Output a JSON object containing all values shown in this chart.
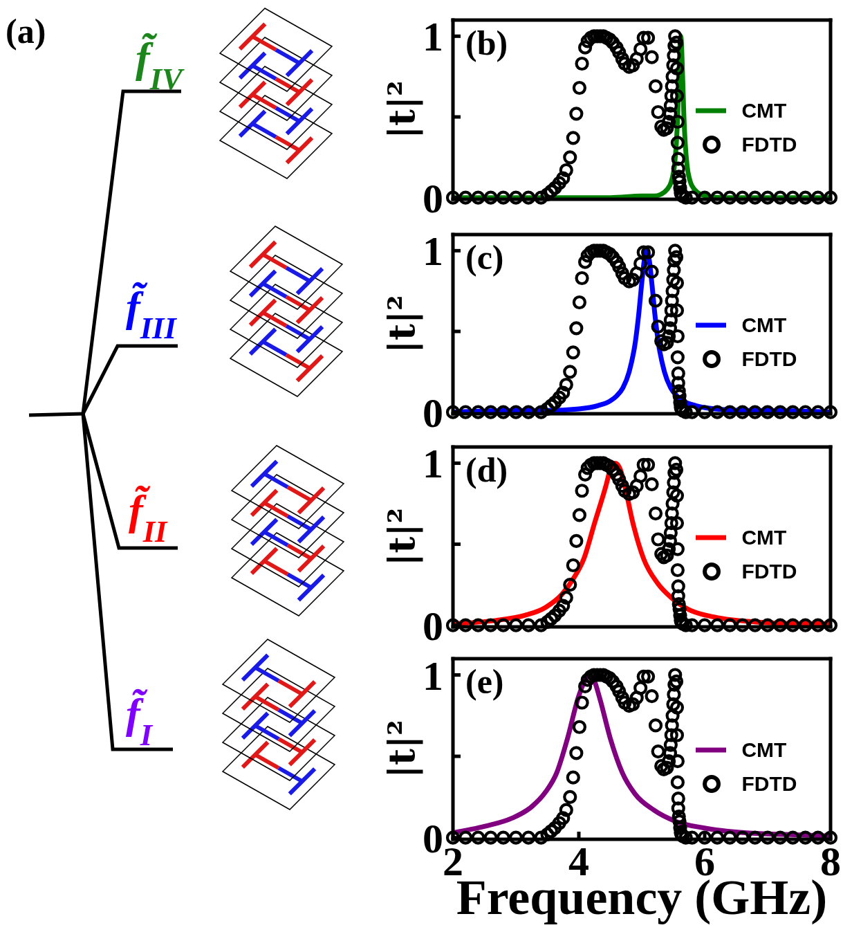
{
  "chart_data": [
    {
      "type": "other",
      "annotations": [
        "(a)"
      ],
      "categories": [
        "f̃$_{IV}$",
        "f̃$_{III}$",
        "f̃$_{II}$",
        "f̃$_{I}$"
      ],
      "colors": [
        "#1c861c",
        "#0000ff",
        "#ff0000",
        "#8000ff"
      ]
    },
    {
      "type": "line",
      "annotations": [
        "(b)"
      ],
      "ylabel": "|t|²",
      "xlim": [
        2,
        8
      ],
      "xticks": [
        2,
        4,
        6,
        8
      ],
      "ylim": [
        -0.01,
        1.1
      ],
      "yticks": [
        {
          "value": 0,
          "label": "0"
        },
        {
          "value": 0.5,
          "label": null
        },
        {
          "value": 1,
          "label": "1"
        }
      ],
      "tick_labels": "y",
      "legend": "right",
      "series": [
        {
          "name": "CMT",
          "color": "#008000",
          "x": [
            2,
            3,
            4,
            4.5,
            5,
            5.2,
            5.3,
            5.4,
            5.47,
            5.52,
            5.55,
            5.57,
            5.59,
            5.61,
            5.62,
            5.63,
            5.65,
            5.67,
            5.69,
            5.72,
            5.77,
            5.84,
            5.94,
            6.04,
            6.3,
            7,
            8
          ],
          "values": [
            0,
            0,
            0,
            0,
            0.01,
            0.01,
            0.02,
            0.05,
            0.1,
            0.2,
            0.34,
            0.5,
            0.74,
            0.96,
            1,
            0.96,
            0.74,
            0.5,
            0.34,
            0.2,
            0.1,
            0.05,
            0.02,
            0.01,
            0,
            0,
            0
          ]
        },
        {
          "name": "FDTD",
          "type": "scatter",
          "marker": "circle",
          "color": "#000000",
          "x": [
            2,
            2.2,
            2.4,
            2.6,
            2.8,
            3,
            3.2,
            3.4,
            3.5,
            3.56,
            3.62,
            3.69,
            3.75,
            3.8,
            3.86,
            3.91,
            3.96,
            4.01,
            4.05,
            4.1,
            4.14,
            4.19,
            4.24,
            4.29,
            4.34,
            4.39,
            4.44,
            4.49,
            4.54,
            4.6,
            4.64,
            4.69,
            4.73,
            4.8,
            4.86,
            4.92,
            4.98,
            5.03,
            5.1,
            5.16,
            5.22,
            5.26,
            5.31,
            5.35,
            5.4,
            5.43,
            5.45,
            5.46,
            5.47,
            5.48,
            5.49,
            5.5,
            5.51,
            5.52,
            5.53,
            5.55,
            5.56,
            5.56,
            5.57,
            5.57,
            5.58,
            5.58,
            5.59,
            5.6,
            5.61,
            5.62,
            5.63,
            5.65,
            5.7,
            5.8,
            6,
            6.2,
            6.4,
            6.6,
            6.8,
            7,
            7.2,
            7.4,
            7.6,
            7.8,
            8
          ],
          "values": [
            0,
            0,
            0,
            0,
            0,
            0,
            0,
            0,
            0.02,
            0.04,
            0.06,
            0.09,
            0.12,
            0.17,
            0.25,
            0.37,
            0.52,
            0.68,
            0.83,
            0.93,
            0.97,
            0.99,
            1,
            1,
            1,
            1,
            0.99,
            0.98,
            0.96,
            0.93,
            0.9,
            0.86,
            0.83,
            0.81,
            0.82,
            0.86,
            0.92,
            0.99,
            0.99,
            0.87,
            0.69,
            0.53,
            0.44,
            0.42,
            0.43,
            0.47,
            0.52,
            0.57,
            0.63,
            0.69,
            0.75,
            0.82,
            0.88,
            0.94,
            1,
            0.96,
            0.8,
            0.63,
            0.47,
            0.34,
            0.24,
            0.18,
            0.13,
            0.1,
            0.06,
            0.03,
            0.02,
            0.01,
            0,
            0,
            0,
            0,
            0,
            0,
            0,
            0,
            0,
            0,
            0,
            0,
            0
          ]
        }
      ]
    },
    {
      "type": "line",
      "annotations": [
        "(c)"
      ],
      "ylabel": "|t|²",
      "xlim": [
        2,
        8
      ],
      "xticks": [
        2,
        4,
        6,
        8
      ],
      "ylim": [
        -0.01,
        1.1
      ],
      "yticks": [
        {
          "value": 0,
          "label": "0"
        },
        {
          "value": 0.5,
          "label": null
        },
        {
          "value": 1,
          "label": "1"
        }
      ],
      "tick_labels": "y",
      "legend": "right",
      "series": [
        {
          "name": "CMT",
          "color": "#0000ff",
          "x": [
            2,
            3,
            3.5,
            4,
            4.3,
            4.5,
            4.6,
            4.7,
            4.8,
            4.9,
            4.95,
            5,
            5.04,
            5.08,
            5.12,
            5.16,
            5.21,
            5.26,
            5.36,
            5.46,
            5.56,
            5.66,
            5.86,
            6.16,
            6.66,
            7,
            8
          ],
          "values": [
            0,
            0.01,
            0.01,
            0.02,
            0.04,
            0.07,
            0.1,
            0.15,
            0.25,
            0.44,
            0.6,
            0.8,
            0.94,
            1,
            0.94,
            0.8,
            0.6,
            0.44,
            0.25,
            0.15,
            0.1,
            0.07,
            0.04,
            0.02,
            0.01,
            0.01,
            0
          ]
        },
        {
          "name": "FDTD",
          "type": "scatter",
          "marker": "circle",
          "color": "#000000",
          "x": [
            2,
            2.2,
            2.4,
            2.6,
            2.8,
            3,
            3.2,
            3.4,
            3.5,
            3.56,
            3.62,
            3.69,
            3.75,
            3.8,
            3.86,
            3.91,
            3.96,
            4.01,
            4.05,
            4.1,
            4.14,
            4.19,
            4.24,
            4.29,
            4.34,
            4.39,
            4.44,
            4.49,
            4.54,
            4.6,
            4.64,
            4.69,
            4.73,
            4.8,
            4.86,
            4.92,
            4.98,
            5.03,
            5.1,
            5.16,
            5.22,
            5.26,
            5.31,
            5.35,
            5.4,
            5.43,
            5.45,
            5.46,
            5.47,
            5.48,
            5.49,
            5.5,
            5.51,
            5.52,
            5.53,
            5.55,
            5.56,
            5.56,
            5.57,
            5.57,
            5.58,
            5.58,
            5.59,
            5.6,
            5.61,
            5.62,
            5.63,
            5.65,
            5.7,
            5.8,
            6,
            6.2,
            6.4,
            6.6,
            6.8,
            7,
            7.2,
            7.4,
            7.6,
            7.8,
            8
          ],
          "values": [
            0,
            0,
            0,
            0,
            0,
            0,
            0,
            0,
            0.02,
            0.04,
            0.06,
            0.09,
            0.12,
            0.17,
            0.25,
            0.37,
            0.52,
            0.68,
            0.83,
            0.93,
            0.97,
            0.99,
            1,
            1,
            1,
            1,
            0.99,
            0.98,
            0.96,
            0.93,
            0.9,
            0.86,
            0.83,
            0.81,
            0.82,
            0.86,
            0.92,
            0.99,
            0.99,
            0.87,
            0.69,
            0.53,
            0.44,
            0.42,
            0.43,
            0.47,
            0.52,
            0.57,
            0.63,
            0.69,
            0.75,
            0.82,
            0.88,
            0.94,
            1,
            0.96,
            0.8,
            0.63,
            0.47,
            0.34,
            0.24,
            0.18,
            0.13,
            0.1,
            0.06,
            0.03,
            0.02,
            0.01,
            0,
            0,
            0,
            0,
            0,
            0,
            0,
            0,
            0,
            0,
            0,
            0,
            0
          ]
        }
      ]
    },
    {
      "type": "line",
      "annotations": [
        "(d)"
      ],
      "ylabel": "|t|²",
      "xlim": [
        2,
        8
      ],
      "xticks": [
        2,
        4,
        6,
        8
      ],
      "ylim": [
        -0.01,
        1.1
      ],
      "yticks": [
        {
          "value": 0,
          "label": "0"
        },
        {
          "value": 0.5,
          "label": null
        },
        {
          "value": 1,
          "label": "1"
        }
      ],
      "tick_labels": "y",
      "legend": "right",
      "series": [
        {
          "name": "CMT",
          "color": "#ff0000",
          "x": [
            2,
            2.69,
            3.13,
            3.47,
            3.73,
            3.9,
            4.08,
            4.25,
            4.43,
            4.5,
            4.58,
            4.66,
            4.73,
            4.86,
            5.03,
            5.25,
            5.47,
            5.73,
            6.16,
            6.81,
            7.46,
            8
          ],
          "values": [
            0.01,
            0.03,
            0.06,
            0.11,
            0.19,
            0.28,
            0.41,
            0.63,
            0.86,
            0.96,
            1,
            0.96,
            0.86,
            0.63,
            0.41,
            0.26,
            0.17,
            0.1,
            0.05,
            0.02,
            0.01,
            0.01
          ]
        },
        {
          "name": "FDTD",
          "type": "scatter",
          "marker": "circle",
          "color": "#000000",
          "x": [
            2,
            2.2,
            2.4,
            2.6,
            2.8,
            3,
            3.2,
            3.4,
            3.5,
            3.56,
            3.62,
            3.69,
            3.75,
            3.8,
            3.86,
            3.91,
            3.96,
            4.01,
            4.05,
            4.1,
            4.14,
            4.19,
            4.24,
            4.29,
            4.34,
            4.39,
            4.44,
            4.49,
            4.54,
            4.6,
            4.64,
            4.69,
            4.73,
            4.8,
            4.86,
            4.92,
            4.98,
            5.03,
            5.1,
            5.16,
            5.22,
            5.26,
            5.31,
            5.35,
            5.4,
            5.43,
            5.45,
            5.46,
            5.47,
            5.48,
            5.49,
            5.5,
            5.51,
            5.52,
            5.53,
            5.55,
            5.56,
            5.56,
            5.57,
            5.57,
            5.58,
            5.58,
            5.59,
            5.6,
            5.61,
            5.62,
            5.63,
            5.65,
            5.7,
            5.8,
            6,
            6.2,
            6.4,
            6.6,
            6.8,
            7,
            7.2,
            7.4,
            7.6,
            7.8,
            8
          ],
          "values": [
            0,
            0,
            0,
            0,
            0,
            0,
            0,
            0,
            0.02,
            0.04,
            0.06,
            0.09,
            0.12,
            0.17,
            0.25,
            0.37,
            0.52,
            0.68,
            0.83,
            0.93,
            0.97,
            0.99,
            1,
            1,
            1,
            1,
            0.99,
            0.98,
            0.96,
            0.93,
            0.9,
            0.86,
            0.83,
            0.81,
            0.82,
            0.86,
            0.92,
            0.99,
            0.99,
            0.87,
            0.69,
            0.53,
            0.44,
            0.42,
            0.43,
            0.47,
            0.52,
            0.57,
            0.63,
            0.69,
            0.75,
            0.82,
            0.88,
            0.94,
            1,
            0.96,
            0.8,
            0.63,
            0.47,
            0.34,
            0.24,
            0.18,
            0.13,
            0.1,
            0.06,
            0.03,
            0.02,
            0.01,
            0,
            0,
            0,
            0,
            0,
            0,
            0,
            0,
            0,
            0,
            0,
            0,
            0
          ]
        }
      ]
    },
    {
      "type": "line",
      "annotations": [
        "(e)"
      ],
      "xlabel": "Frequency (GHz)",
      "ylabel": "|t|²",
      "xlim": [
        2,
        8
      ],
      "xticks": [
        2,
        4,
        6,
        8
      ],
      "ylim": [
        -0.01,
        1.1
      ],
      "yticks": [
        {
          "value": 0,
          "label": "0"
        },
        {
          "value": 0.5,
          "label": null
        },
        {
          "value": 1,
          "label": "1"
        }
      ],
      "legend": "right",
      "series": [
        {
          "name": "CMT",
          "color": "#800080",
          "x": [
            2,
            2.51,
            2.94,
            3.25,
            3.47,
            3.65,
            3.82,
            3.99,
            4.09,
            4.17,
            4.25,
            4.33,
            4.5,
            4.69,
            4.89,
            5.19,
            5.54,
            5.98,
            6.63,
            7.28,
            8
          ],
          "values": [
            0.03,
            0.07,
            0.12,
            0.19,
            0.28,
            0.4,
            0.61,
            0.86,
            0.96,
            1,
            0.96,
            0.86,
            0.61,
            0.4,
            0.27,
            0.17,
            0.1,
            0.06,
            0.03,
            0.02,
            0.01
          ]
        },
        {
          "name": "FDTD",
          "type": "scatter",
          "marker": "circle",
          "color": "#000000",
          "x": [
            2,
            2.2,
            2.4,
            2.6,
            2.8,
            3,
            3.2,
            3.4,
            3.5,
            3.56,
            3.62,
            3.69,
            3.75,
            3.8,
            3.86,
            3.91,
            3.96,
            4.01,
            4.05,
            4.1,
            4.14,
            4.19,
            4.24,
            4.29,
            4.34,
            4.39,
            4.44,
            4.49,
            4.54,
            4.6,
            4.64,
            4.69,
            4.73,
            4.8,
            4.86,
            4.92,
            4.98,
            5.03,
            5.1,
            5.16,
            5.22,
            5.26,
            5.31,
            5.35,
            5.4,
            5.43,
            5.45,
            5.46,
            5.47,
            5.48,
            5.49,
            5.5,
            5.51,
            5.52,
            5.53,
            5.55,
            5.56,
            5.56,
            5.57,
            5.57,
            5.58,
            5.58,
            5.59,
            5.6,
            5.61,
            5.62,
            5.63,
            5.65,
            5.7,
            5.8,
            6,
            6.2,
            6.4,
            6.6,
            6.8,
            7,
            7.2,
            7.4,
            7.6,
            7.8,
            8
          ],
          "values": [
            0,
            0,
            0,
            0,
            0,
            0,
            0,
            0,
            0.02,
            0.04,
            0.06,
            0.09,
            0.12,
            0.17,
            0.25,
            0.37,
            0.52,
            0.68,
            0.83,
            0.93,
            0.97,
            0.99,
            1,
            1,
            1,
            1,
            0.99,
            0.98,
            0.96,
            0.93,
            0.9,
            0.86,
            0.83,
            0.81,
            0.82,
            0.86,
            0.92,
            0.99,
            0.99,
            0.87,
            0.69,
            0.53,
            0.44,
            0.42,
            0.43,
            0.47,
            0.52,
            0.57,
            0.63,
            0.69,
            0.75,
            0.82,
            0.88,
            0.94,
            1,
            0.96,
            0.8,
            0.63,
            0.47,
            0.34,
            0.24,
            0.18,
            0.13,
            0.1,
            0.06,
            0.03,
            0.02,
            0.01,
            0,
            0,
            0,
            0,
            0,
            0,
            0,
            0,
            0,
            0,
            0,
            0,
            0
          ]
        }
      ]
    }
  ]
}
